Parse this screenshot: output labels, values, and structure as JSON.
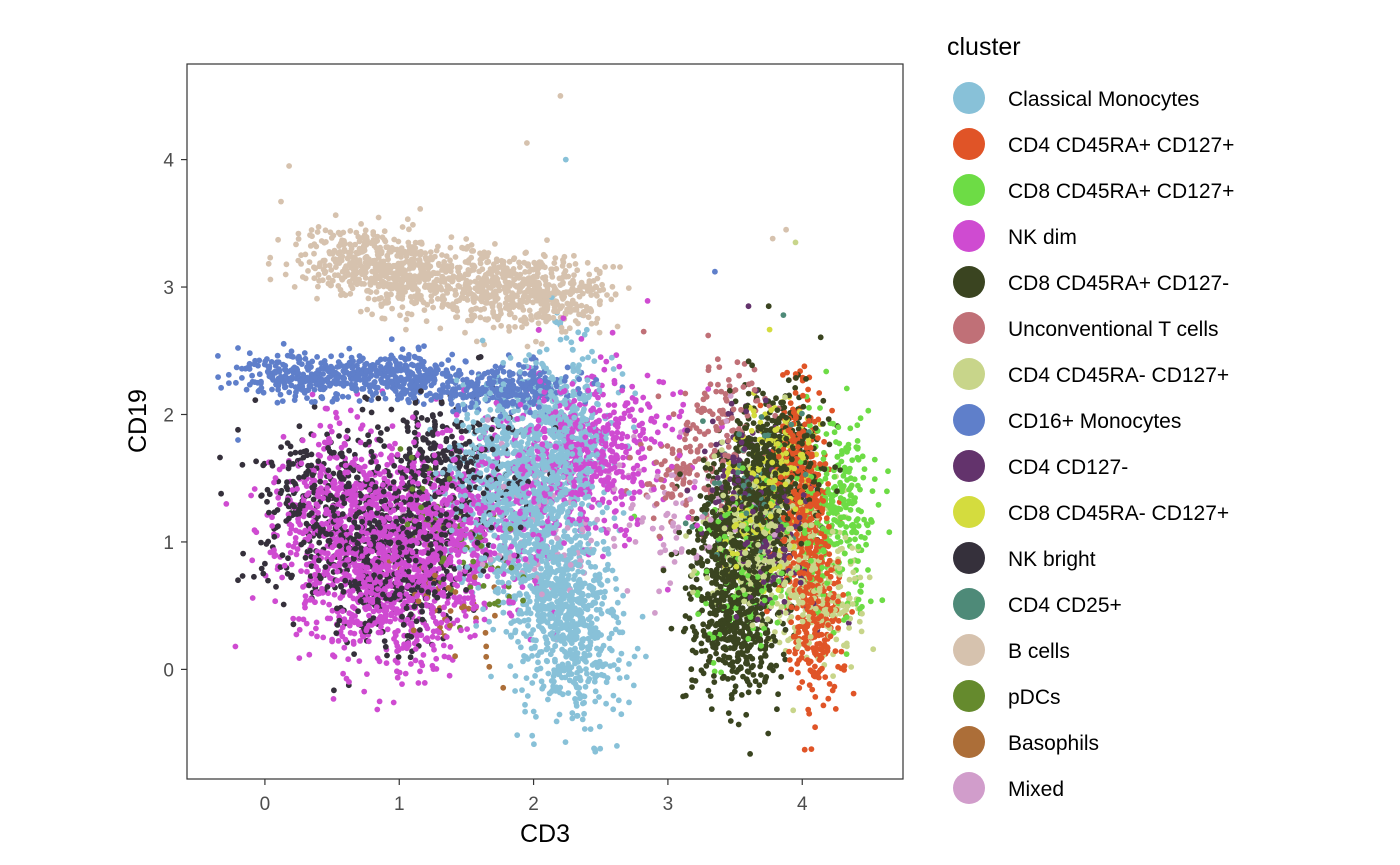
{
  "chart_data": {
    "type": "scatter",
    "title": "",
    "xlabel": "CD3",
    "ylabel": "CD19",
    "xlim": [
      -0.58,
      4.75
    ],
    "ylim": [
      -0.86,
      4.75
    ],
    "xticks": [
      0,
      1,
      2,
      3,
      4
    ],
    "yticks": [
      0,
      1,
      2,
      3,
      4
    ],
    "grid": false,
    "legend": {
      "title": "cluster",
      "position": "right"
    },
    "series": [
      {
        "name": "Classical Monocytes",
        "color": "#88c1d8",
        "centers": [
          [
            2.05,
            0.95
          ],
          [
            1.75,
            1.5
          ],
          [
            2.3,
            0.3
          ],
          [
            2.2,
            1.8
          ]
        ],
        "spread": [
          0.35,
          0.65
        ],
        "n": 2100,
        "points": [
          [
            2.24,
            4.0
          ],
          [
            2.45,
            -0.62
          ],
          [
            2.62,
            -0.6
          ],
          [
            1.99,
            -0.52
          ]
        ]
      },
      {
        "name": "CD4 CD45RA+ CD127+",
        "color": "#e05427",
        "centers": [
          [
            4.05,
            1.0
          ],
          [
            3.95,
            1.6
          ],
          [
            4.1,
            0.4
          ]
        ],
        "spread": [
          0.17,
          0.6
        ],
        "n": 700,
        "points": [
          [
            4.25,
            -0.31
          ],
          [
            4.05,
            1.95
          ]
        ]
      },
      {
        "name": "CD8 CD45RA+ CD127+",
        "color": "#6ddc45",
        "centers": [
          [
            4.2,
            1.0
          ],
          [
            3.6,
            0.8
          ],
          [
            4.3,
            1.5
          ]
        ],
        "spread": [
          0.3,
          0.55
        ],
        "n": 450,
        "points": [
          [
            4.48,
            1.14
          ],
          [
            4.33,
            0.12
          ],
          [
            2.75,
            1.2
          ]
        ]
      },
      {
        "name": "NK dim",
        "color": "#cf4bd1",
        "centers": [
          [
            0.6,
            1.2
          ],
          [
            1.4,
            1.1
          ],
          [
            2.4,
            1.7
          ],
          [
            0.9,
            0.6
          ]
        ],
        "spread": [
          0.55,
          0.6
        ],
        "n": 2300,
        "points": [
          [
            -0.22,
            0.18
          ],
          [
            2.5,
            2.45
          ],
          [
            3.3,
            2.2
          ]
        ]
      },
      {
        "name": "CD8 CD45RA+ CD127-",
        "color": "#3a4420",
        "centers": [
          [
            3.55,
            1.05
          ],
          [
            3.8,
            1.6
          ],
          [
            3.5,
            0.4
          ]
        ],
        "spread": [
          0.3,
          0.55
        ],
        "n": 1400,
        "points": [
          [
            3.75,
            2.85
          ],
          [
            3.55,
            -0.2
          ]
        ]
      },
      {
        "name": "Unconventional T cells",
        "color": "#c07077",
        "centers": [
          [
            3.1,
            1.5
          ],
          [
            3.4,
            2.0
          ]
        ],
        "spread": [
          0.3,
          0.4
        ],
        "n": 180,
        "points": [
          [
            3.3,
            2.62
          ],
          [
            2.82,
            2.65
          ]
        ]
      },
      {
        "name": "CD4 CD45RA- CD127+",
        "color": "#c8d58a",
        "centers": [
          [
            3.7,
            1.0
          ],
          [
            4.1,
            0.6
          ]
        ],
        "spread": [
          0.35,
          0.55
        ],
        "n": 500,
        "points": [
          [
            3.95,
            3.35
          ]
        ]
      },
      {
        "name": "CD16+ Monocytes",
        "color": "#5f7fca",
        "centers": [
          [
            0.3,
            2.3
          ],
          [
            1.0,
            2.3
          ],
          [
            1.8,
            2.2
          ]
        ],
        "spread": [
          0.45,
          0.16
        ],
        "n": 850,
        "points": [
          [
            -0.35,
            2.46
          ],
          [
            3.35,
            3.12
          ],
          [
            -0.2,
            1.8
          ]
        ]
      },
      {
        "name": "CD4 CD127-",
        "color": "#63336c",
        "centers": [
          [
            3.8,
            0.9
          ],
          [
            3.6,
            1.5
          ]
        ],
        "spread": [
          0.3,
          0.55
        ],
        "n": 220,
        "points": [
          [
            3.6,
            2.85
          ]
        ]
      },
      {
        "name": "CD8 CD45RA- CD127+",
        "color": "#d4dc3e",
        "centers": [
          [
            3.65,
            1.2
          ],
          [
            3.85,
            1.7
          ]
        ],
        "spread": [
          0.25,
          0.45
        ],
        "n": 260,
        "points": []
      },
      {
        "name": "NK bright",
        "color": "#35303b",
        "centers": [
          [
            0.5,
            1.3
          ],
          [
            0.9,
            0.8
          ],
          [
            1.3,
            1.5
          ]
        ],
        "spread": [
          0.5,
          0.55
        ],
        "n": 1050,
        "points": [
          [
            -0.2,
            0.7
          ],
          [
            -0.2,
            1.88
          ]
        ]
      },
      {
        "name": "CD4 CD25+",
        "color": "#4e8a78",
        "centers": [
          [
            3.6,
            1.4
          ]
        ],
        "spread": [
          0.35,
          0.5
        ],
        "n": 70,
        "points": [
          [
            3.86,
            2.78
          ]
        ]
      },
      {
        "name": "B cells",
        "color": "#d6c2ae",
        "centers": [
          [
            1.1,
            3.05
          ],
          [
            1.7,
            3.0
          ],
          [
            0.7,
            3.2
          ],
          [
            2.1,
            2.95
          ]
        ],
        "spread": [
          0.42,
          0.26
        ],
        "n": 1150,
        "points": [
          [
            2.2,
            4.5
          ],
          [
            1.95,
            4.13
          ],
          [
            0.18,
            3.95
          ],
          [
            3.88,
            3.45
          ],
          [
            3.78,
            3.38
          ],
          [
            0.12,
            3.67
          ]
        ]
      },
      {
        "name": "pDCs",
        "color": "#658a2d",
        "centers": [
          [
            1.3,
            1.2
          ],
          [
            1.7,
            0.9
          ]
        ],
        "spread": [
          0.3,
          0.4
        ],
        "n": 70,
        "points": []
      },
      {
        "name": "Basophils",
        "color": "#ac6e38",
        "centers": [
          [
            1.2,
            0.6
          ],
          [
            1.5,
            0.3
          ]
        ],
        "spread": [
          0.3,
          0.3
        ],
        "n": 40,
        "points": []
      },
      {
        "name": "Mixed",
        "color": "#d19dcb",
        "centers": [
          [
            2.0,
            1.0
          ],
          [
            3.0,
            1.2
          ]
        ],
        "spread": [
          0.6,
          0.6
        ],
        "n": 140,
        "points": []
      }
    ]
  }
}
